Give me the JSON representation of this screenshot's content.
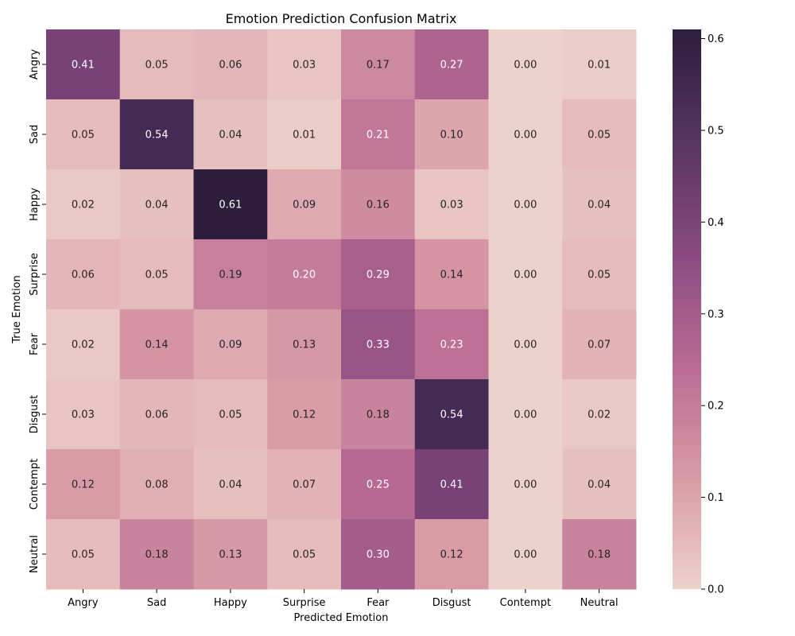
{
  "chart_data": {
    "type": "heatmap",
    "title": "Emotion Prediction Confusion Matrix",
    "xlabel": "Predicted Emotion",
    "ylabel": "True Emotion",
    "x_categories": [
      "Angry",
      "Sad",
      "Happy",
      "Surprise",
      "Fear",
      "Disgust",
      "Contempt",
      "Neutral"
    ],
    "y_categories": [
      "Angry",
      "Sad",
      "Happy",
      "Surprise",
      "Fear",
      "Disgust",
      "Contempt",
      "Neutral"
    ],
    "values": [
      [
        0.41,
        0.05,
        0.06,
        0.03,
        0.17,
        0.27,
        0.0,
        0.01
      ],
      [
        0.05,
        0.54,
        0.04,
        0.01,
        0.21,
        0.1,
        0.0,
        0.05
      ],
      [
        0.02,
        0.04,
        0.61,
        0.09,
        0.16,
        0.03,
        0.0,
        0.04
      ],
      [
        0.06,
        0.05,
        0.19,
        0.2,
        0.29,
        0.14,
        0.0,
        0.05
      ],
      [
        0.02,
        0.14,
        0.09,
        0.13,
        0.33,
        0.23,
        0.0,
        0.07
      ],
      [
        0.03,
        0.06,
        0.05,
        0.12,
        0.18,
        0.54,
        0.0,
        0.02
      ],
      [
        0.12,
        0.08,
        0.04,
        0.07,
        0.25,
        0.41,
        0.0,
        0.04
      ],
      [
        0.05,
        0.18,
        0.13,
        0.05,
        0.3,
        0.12,
        0.0,
        0.18
      ]
    ],
    "colorbar": {
      "min": 0.0,
      "max": 0.61,
      "ticks": [
        "0.0",
        "0.1",
        "0.2",
        "0.3",
        "0.4",
        "0.5",
        "0.6"
      ],
      "colors": [
        "#edd1cb",
        "#d99ba6",
        "#b86b93",
        "#8a4a81",
        "#573463",
        "#2d1e3e"
      ]
    },
    "value_format": "2-decimals",
    "grid": false,
    "legend": "colorbar-right"
  }
}
